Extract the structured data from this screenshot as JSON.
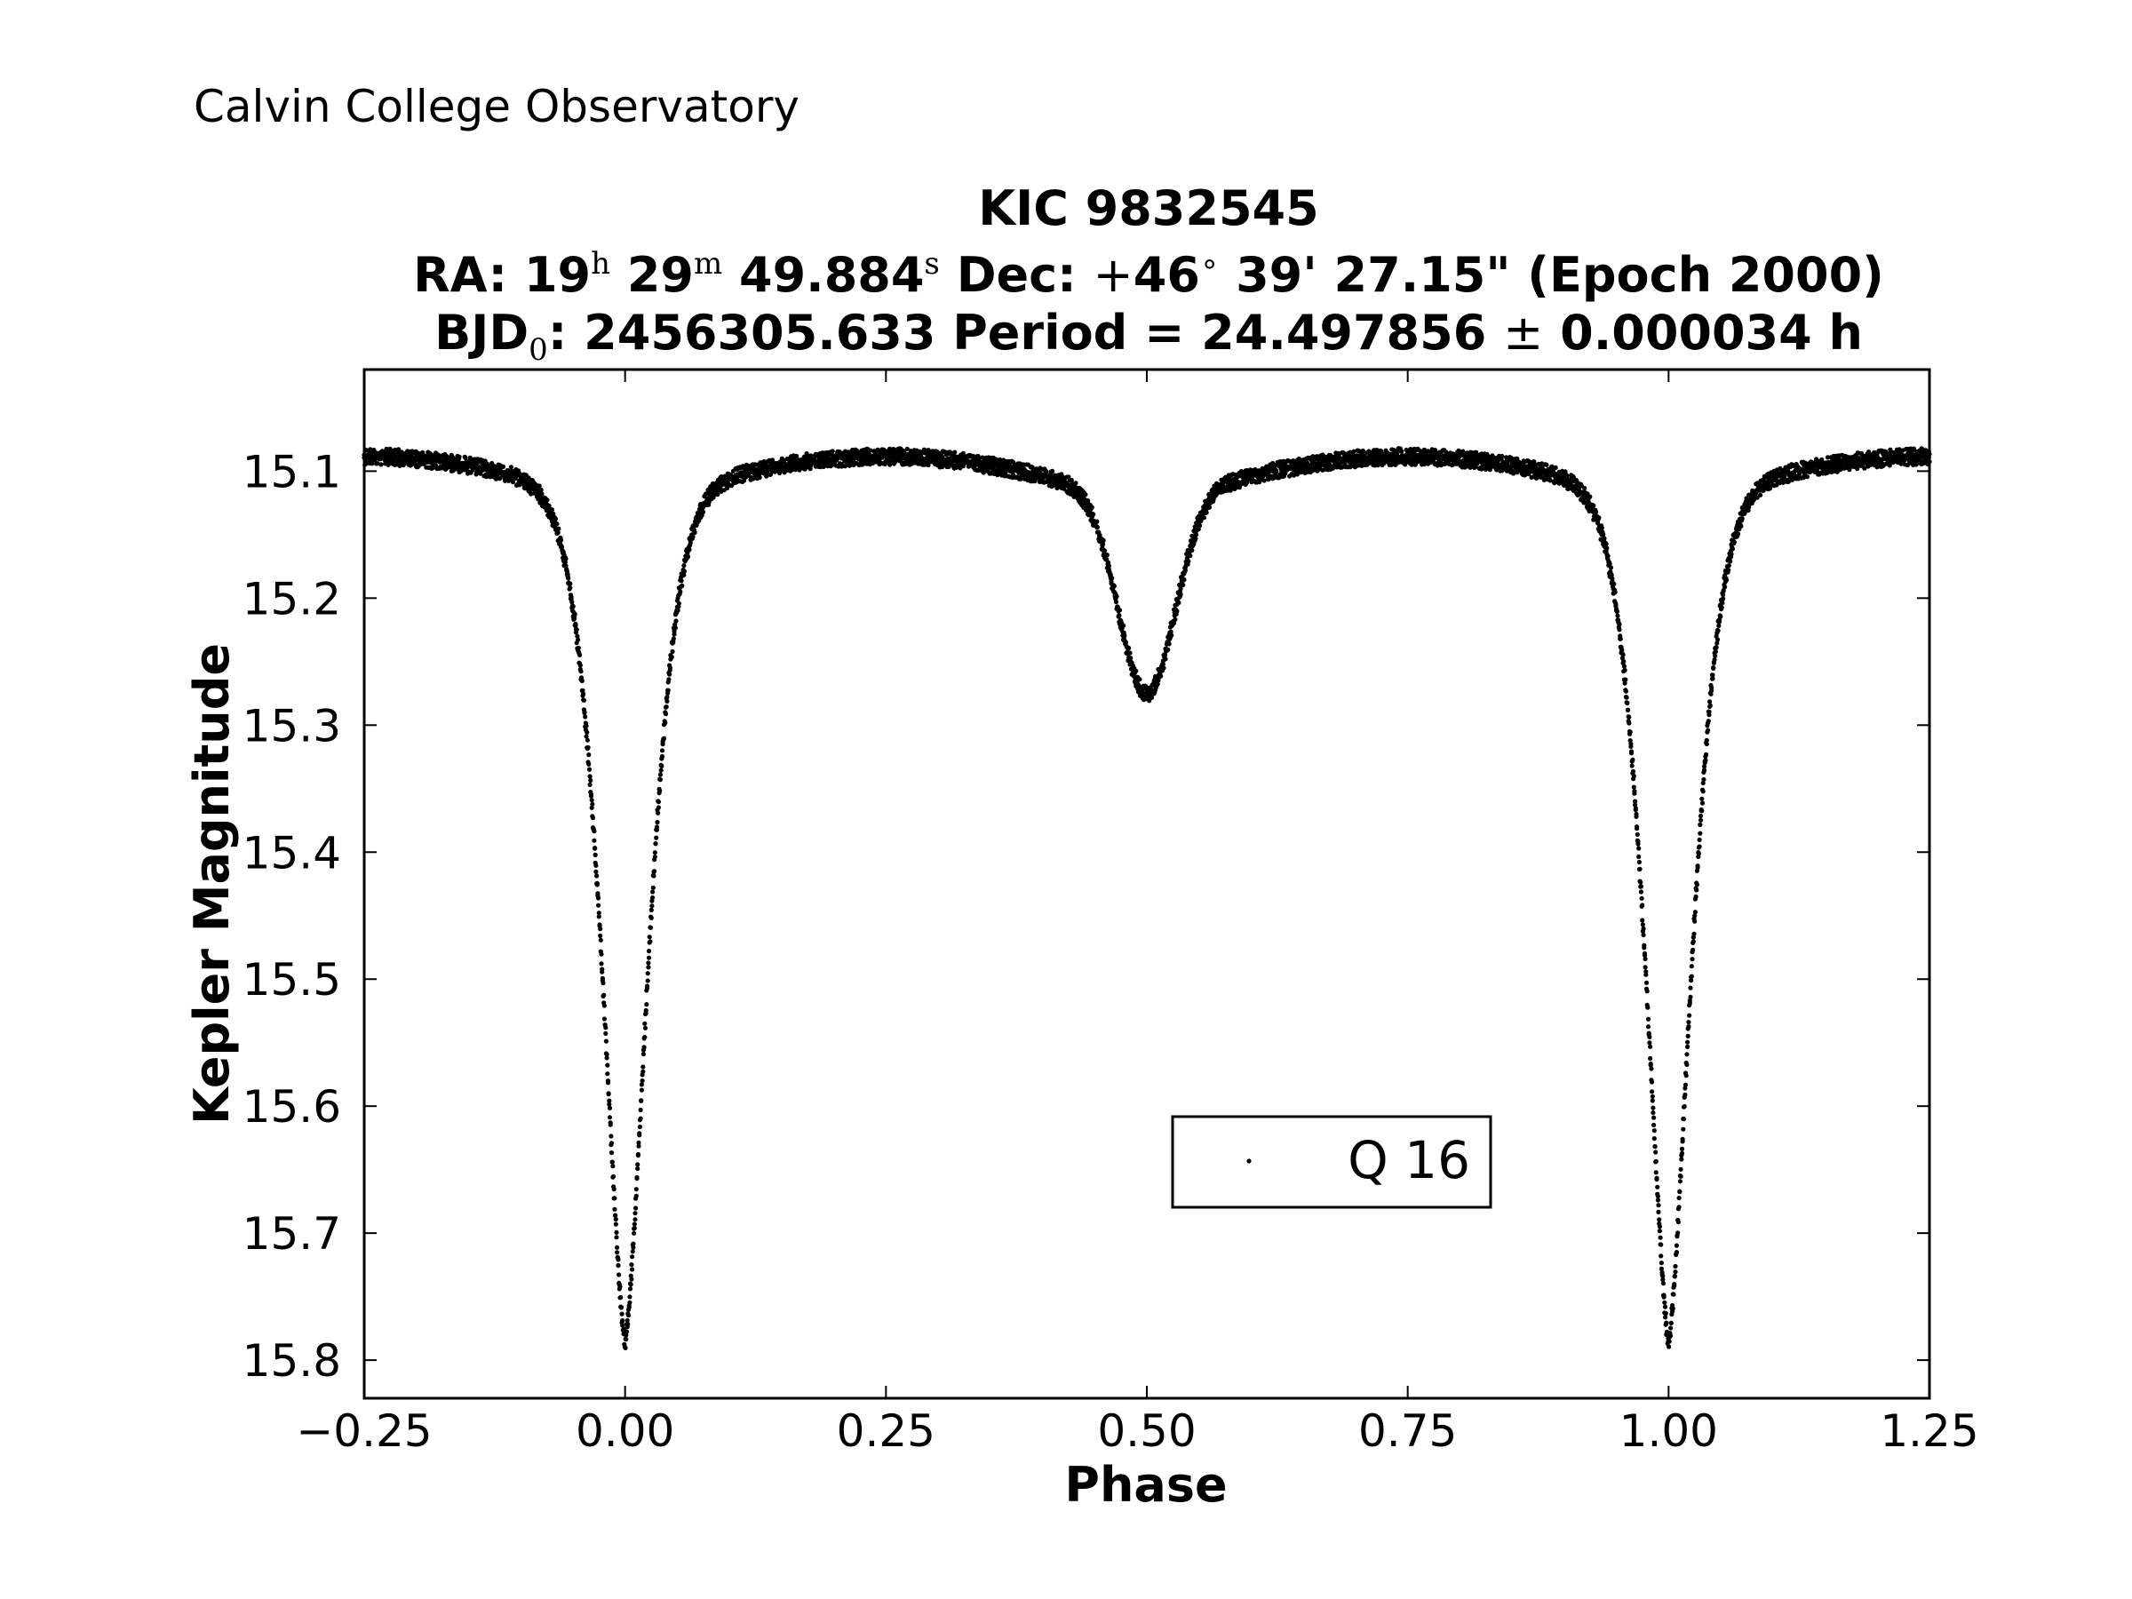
{
  "chart_data": {
    "type": "scatter",
    "observatory": "Calvin College Observatory",
    "title": {
      "line1": "KIC 9832545",
      "line2": {
        "ra_label": "RA: ",
        "ra_h": "19",
        "ra_h_unit": "h",
        "ra_m": "29",
        "ra_m_unit": "m",
        "ra_s": "49.884",
        "ra_s_unit": "s",
        "dec_label": "Dec: ",
        "dec_sign": "+",
        "dec_deg": "46",
        "dec_deg_unit": "∘",
        "dec_rest": "39' 27.15\" (Epoch 2000)"
      },
      "line3": {
        "bjd_label": "BJD",
        "bjd_sub": "0",
        "bjd_value": ": 2456305.633",
        "period_label": "Period = 24.497856",
        "pm": "±",
        "period_err": "0.000034 h"
      }
    },
    "xlabel": "Phase",
    "ylabel": "Kepler Magnitude",
    "xlim": [
      -0.25,
      1.25
    ],
    "ylim": [
      15.83,
      15.02
    ],
    "y_inverted": true,
    "xticks": [
      -0.25,
      0.0,
      0.25,
      0.5,
      0.75,
      1.0,
      1.25
    ],
    "xtick_labels": [
      "−0.25",
      "0.00",
      "0.25",
      "0.50",
      "0.75",
      "1.00",
      "1.25"
    ],
    "yticks": [
      15.1,
      15.2,
      15.3,
      15.4,
      15.5,
      15.6,
      15.7,
      15.8
    ],
    "ytick_labels": [
      "15.1",
      "15.2",
      "15.3",
      "15.4",
      "15.5",
      "15.6",
      "15.7",
      "15.8"
    ],
    "grid": false,
    "legend": {
      "position": "lower-right",
      "label": "Q 16"
    },
    "marker_color": "#000000",
    "series": [
      {
        "name": "Q 16",
        "model": {
          "baseline": 15.125,
          "reflection_amplitude": 0.037,
          "primary": {
            "phase": 0.0,
            "depth": 0.66,
            "width": 0.032,
            "shape_power": 1.5
          },
          "secondary": {
            "phase": 0.5,
            "depth": 0.15,
            "width": 0.038,
            "shape_power": 2.1
          }
        }
      }
    ]
  }
}
